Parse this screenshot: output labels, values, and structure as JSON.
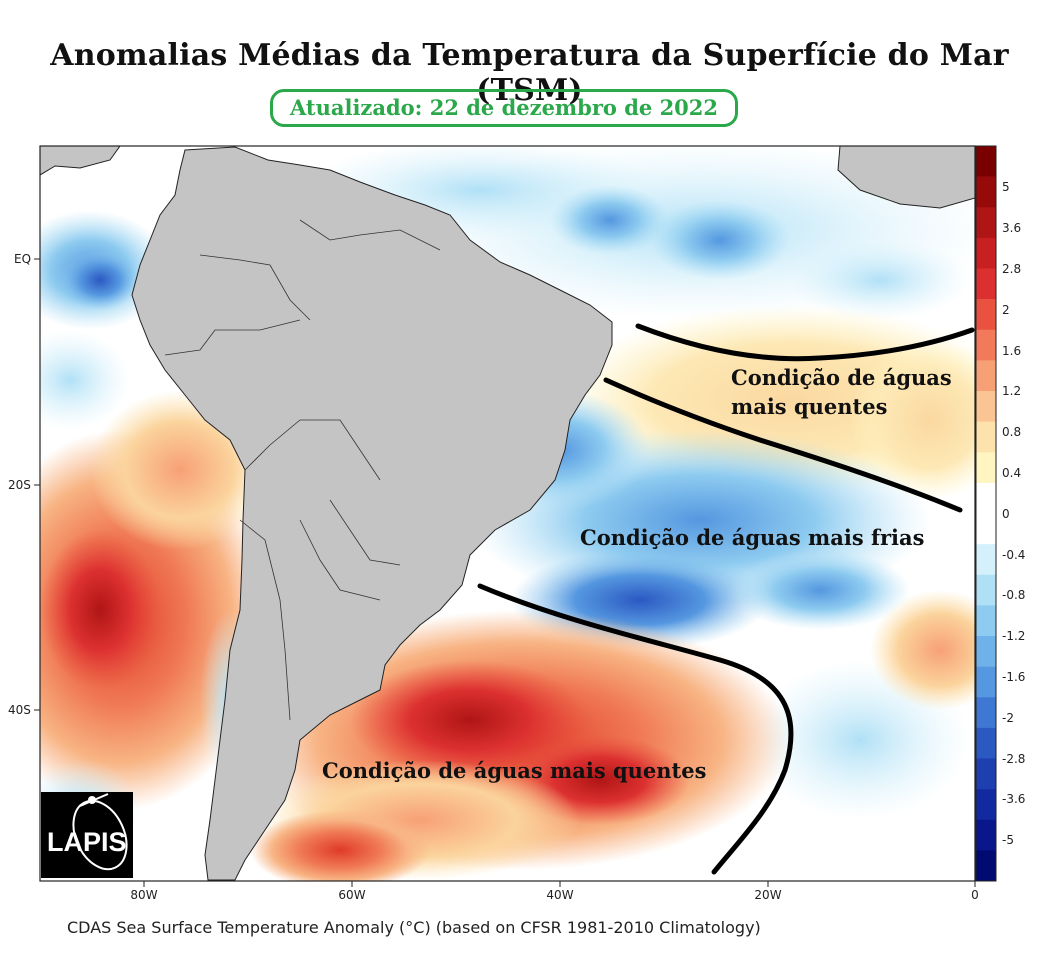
{
  "title": "Anomalias Médias da Temperatura da Superfície do Mar (TSM)",
  "updated": "Atualizado: 22 de dezembro de 2022",
  "caption": "CDAS Sea Surface Temperature Anomaly (°C) (based on CFSR 1981-2010 Climatology)",
  "logo_text": "LAPIS",
  "annotations": {
    "warm_north_line1": "Condição de águas",
    "warm_north_line2": "mais quentes",
    "cold": "Condição de águas mais frias",
    "warm_south": "Condição de águas mais quentes"
  },
  "axes": {
    "lon_ticks": [
      "80W",
      "60W",
      "40W",
      "20W",
      "0"
    ],
    "lat_ticks": [
      "EQ",
      "20S",
      "40S"
    ]
  },
  "colorbar": {
    "labels": [
      "5",
      "3.6",
      "2.8",
      "2",
      "1.6",
      "1.2",
      "0.8",
      "0.4",
      "0",
      "-0.4",
      "-0.8",
      "-1.2",
      "-1.6",
      "-2",
      "-2.8",
      "-3.6",
      "-5"
    ],
    "colors": [
      "#7a0000",
      "#960a0a",
      "#b01515",
      "#c82020",
      "#dc3030",
      "#ea5240",
      "#f27a5a",
      "#f7a076",
      "#fbc493",
      "#fde2ab",
      "#fff5c0",
      "#ffffff",
      "#ffffff",
      "#d4f1fb",
      "#b0e0f6",
      "#8ecbf0",
      "#6fb2ea",
      "#5597e0",
      "#3f78d2",
      "#2b59c2",
      "#1d3fb0",
      "#1329a0",
      "#0a168c",
      "#000a70"
    ]
  },
  "colors": {
    "land": "#c4c4c4",
    "border": "#222222",
    "updated_green": "#2aa84a"
  }
}
